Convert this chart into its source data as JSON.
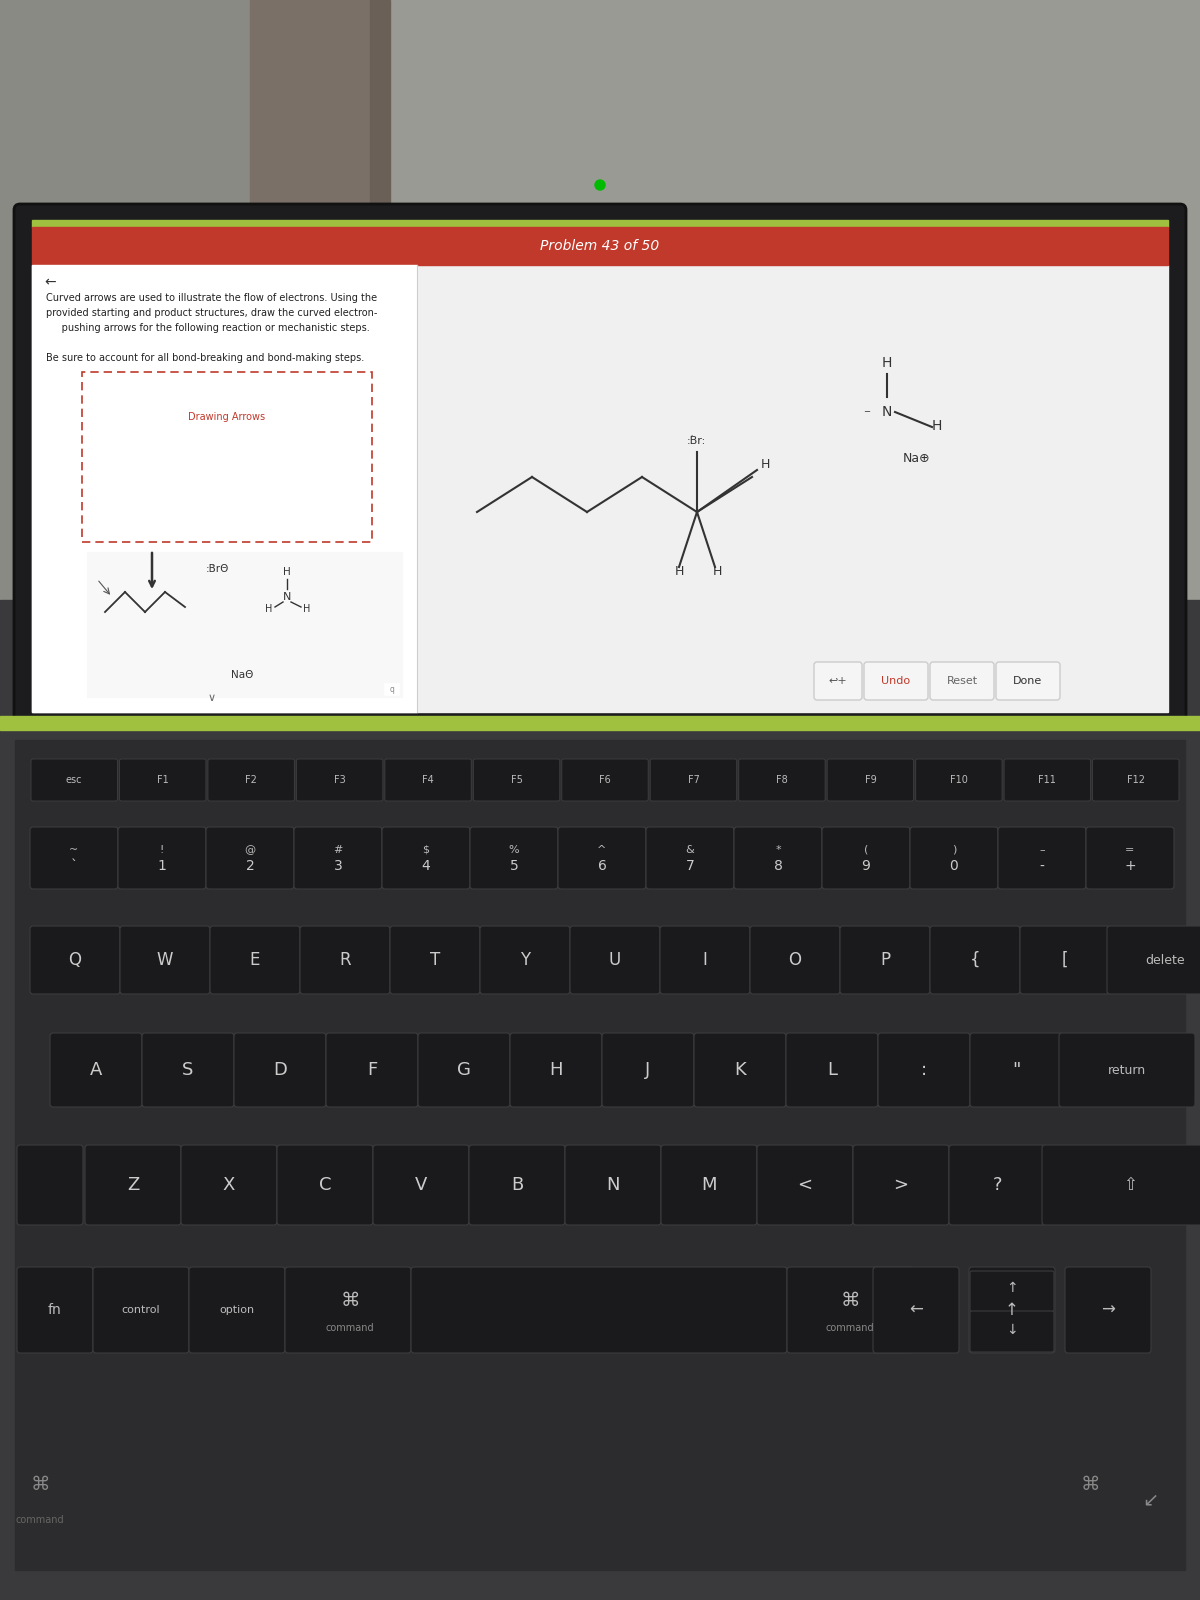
{
  "wall_color": "#9a9a96",
  "wall_door_color": "#b0a898",
  "laptop_body_color": "#3a3a3c",
  "laptop_bezel_color": "#1e1e20",
  "screen_bg": "#e8e8e8",
  "green_line_color": "#a0c040",
  "header_bg": "#c0392b",
  "header_text": "Problem 43 of 50",
  "header_text_color": "#ffffff",
  "left_panel_bg": "#ffffff",
  "right_panel_bg": "#f0f0f0",
  "left_panel_divider": "#dddddd",
  "back_arrow": "←",
  "instruction_lines": [
    "Curved arrows are used to illustrate the flow of electrons. Using the",
    "provided starting and product structures, draw the curved electron-",
    "     pushing arrows for the following reaction or mechanistic steps.",
    "",
    "Be sure to account for all bond-breaking and bond-making steps."
  ],
  "drawing_arrows_label": "Drawing Arrows",
  "drawing_arrows_color": "#c0392b",
  "dashed_box_color": "#c0392b",
  "key_color": "#1a1a1c",
  "key_border_color": "#3a3a3c",
  "key_text_color": "#cccccc",
  "keyboard_surface": "#2c2c2e",
  "camera_dot_color": "#00bb00",
  "btn_undo_color": "#c0392b",
  "btn_reset_color": "#666666",
  "btn_done_color": "#333333"
}
